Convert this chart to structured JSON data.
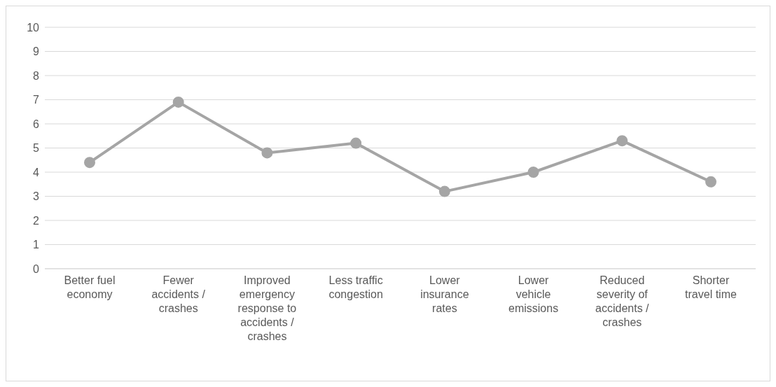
{
  "chart_data": {
    "type": "line",
    "categories": [
      "Better fuel economy",
      "Fewer accidents / crashes",
      "Improved emergency response to accidents / crashes",
      "Less traffic congestion",
      "Lower insurance rates",
      "Lower vehicle emissions",
      "Reduced severity of accidents / crashes",
      "Shorter travel time"
    ],
    "series": [
      {
        "color": "#a5a5a5",
        "values": [
          4.4,
          6.9,
          4.8,
          5.2,
          3.2,
          4.0,
          5.3,
          3.6
        ]
      }
    ],
    "ylim": [
      0,
      10
    ],
    "yticks": [
      0,
      1,
      2,
      3,
      4,
      5,
      6,
      7,
      8,
      9,
      10
    ],
    "grid": "y",
    "marker": "circle",
    "line_style": "solid",
    "legend": false
  }
}
